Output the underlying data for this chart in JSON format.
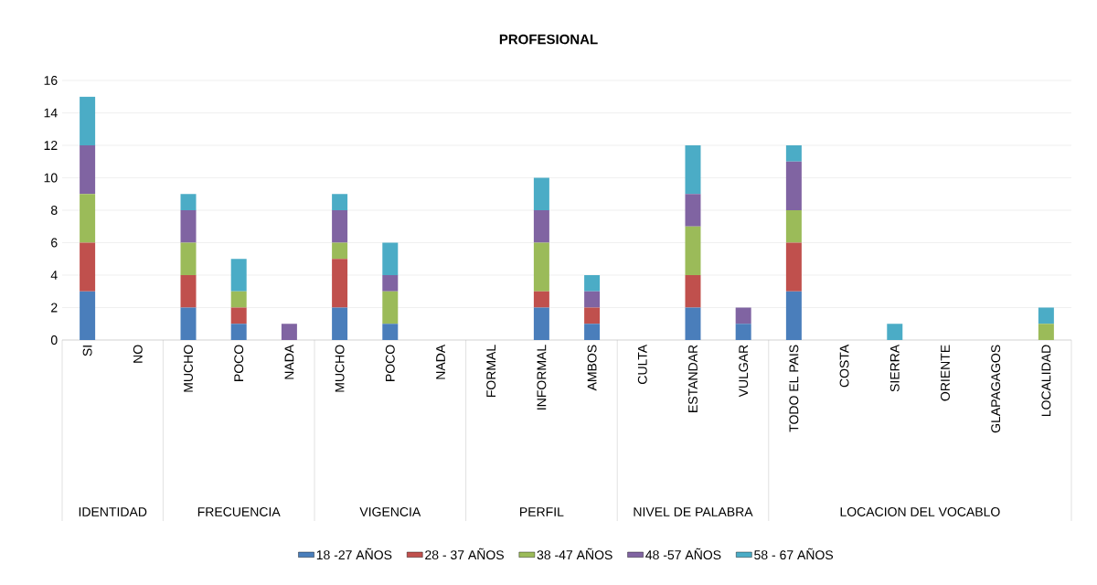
{
  "chart_data": {
    "type": "bar",
    "stacked": true,
    "title": "PROFESIONAL",
    "categories": [
      "SI",
      "NO",
      "MUCHO",
      "POCO",
      "NADA",
      "MUCHO",
      "POCO",
      "NADA",
      "FORMAL",
      "INFORMAL",
      "AMBOS",
      "CULTA",
      "ESTANDAR",
      "VULGAR",
      "TODO EL PAIS",
      "COSTA",
      "SIERRA",
      "ORIENTE",
      "GLAPAGAGOS",
      "LOCALIDAD"
    ],
    "series": [
      {
        "name": "18 -27 AÑOS",
        "color": "#4a7ebb",
        "values": [
          3,
          0,
          2,
          1,
          0,
          2,
          1,
          0,
          0,
          2,
          1,
          0,
          2,
          1,
          3,
          0,
          0,
          0,
          0,
          0
        ]
      },
      {
        "name": "28 - 37 AÑOS",
        "color": "#c0504d",
        "values": [
          3,
          0,
          2,
          1,
          0,
          3,
          0,
          0,
          0,
          1,
          1,
          0,
          2,
          0,
          3,
          0,
          0,
          0,
          0,
          0
        ]
      },
      {
        "name": "38 -47 AÑOS",
        "color": "#9bbb59",
        "values": [
          3,
          0,
          2,
          1,
          0,
          1,
          2,
          0,
          0,
          3,
          0,
          0,
          3,
          0,
          2,
          0,
          0,
          0,
          0,
          1
        ]
      },
      {
        "name": "48 -57 AÑOS",
        "color": "#8064a2",
        "values": [
          3,
          0,
          2,
          0,
          1,
          2,
          1,
          0,
          0,
          2,
          1,
          0,
          2,
          1,
          3,
          0,
          0,
          0,
          0,
          0
        ]
      },
      {
        "name": "58 - 67 AÑOS",
        "color": "#4bacc6",
        "values": [
          3,
          0,
          1,
          2,
          0,
          1,
          2,
          0,
          0,
          2,
          1,
          0,
          3,
          0,
          1,
          0,
          1,
          0,
          0,
          1
        ]
      }
    ],
    "annotations": [
      "IDENTIDAD",
      "FRECUENCIA",
      "VIGENCIA",
      "PERFIL",
      "NIVEL DE PALABRA",
      "LOCACION DEL VOCABLO"
    ],
    "ylim": [
      0,
      16
    ],
    "yticks": [
      0,
      2,
      4,
      6,
      8,
      10,
      12,
      14,
      16
    ],
    "grid": "y",
    "legend": "bottom"
  }
}
